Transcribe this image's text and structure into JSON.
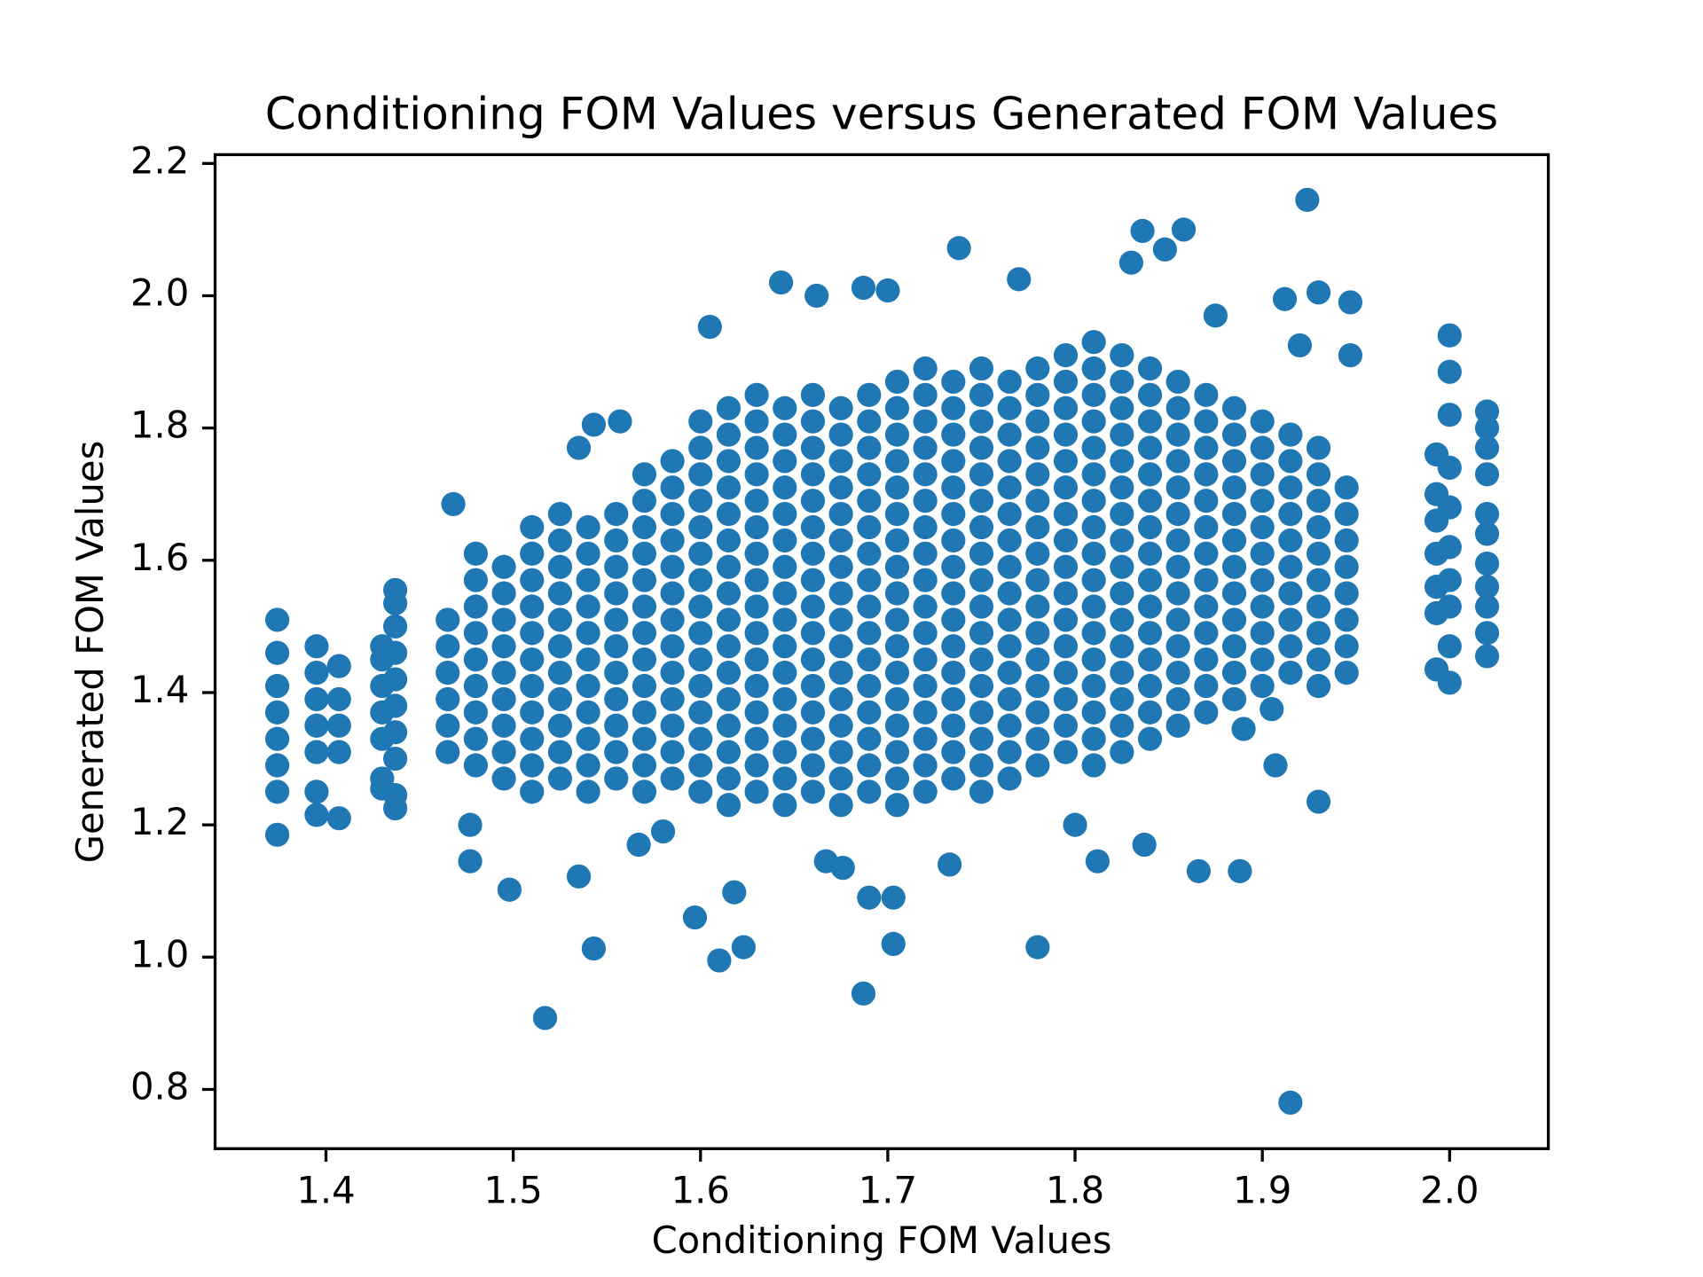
{
  "chart_data": {
    "type": "scatter",
    "title": "Conditioning FOM Values versus Generated FOM Values",
    "x_label": "Conditioning FOM Values",
    "y_label": "Generated FOM Values",
    "color": "#1f77b4",
    "xlim": [
      1.3408,
      2.0527
    ],
    "ylim": [
      0.7104,
      2.2133
    ],
    "xticks": [
      1.4,
      1.5,
      1.6,
      1.7,
      1.8,
      1.9,
      {
        "value": 2,
        "label": "2.0"
      }
    ],
    "yticks": [
      0.8,
      {
        "value": 1,
        "label": "1.0"
      },
      1.2,
      1.4,
      1.6,
      1.8,
      {
        "value": 2,
        "label": "2.0"
      },
      2.2
    ],
    "x": [
      1.374,
      1.374,
      1.374,
      1.374,
      1.374,
      1.374,
      1.374,
      1.374,
      1.395,
      1.395,
      1.395,
      1.395,
      1.395,
      1.395,
      1.395,
      1.407,
      1.407,
      1.407,
      1.407,
      1.407,
      1.43,
      1.43,
      1.43,
      1.43,
      1.43,
      1.43,
      1.43,
      1.437,
      1.437,
      1.437,
      1.437,
      1.437,
      1.437,
      1.437,
      1.437,
      1.437,
      1.437,
      1.993,
      1.993,
      1.993,
      1.993,
      1.993,
      1.993,
      1.993,
      2,
      2,
      2,
      2,
      2,
      2,
      2,
      2,
      2,
      2,
      2.02,
      2.02,
      2.02,
      2.02,
      2.02,
      2.02,
      2.02,
      2.02,
      2.02,
      2.02,
      2.02,
      1.915,
      1.517,
      1.687,
      1.61,
      1.623,
      1.543,
      1.78,
      1.703,
      1.597,
      1.618,
      1.498,
      1.535,
      1.69,
      1.703,
      1.888,
      1.866,
      1.924,
      1.858,
      1.836,
      1.738,
      1.643,
      1.605,
      1.477,
      1.477,
      1.468,
      1.812,
      1.837,
      1.907,
      1.93,
      1.905,
      1.676,
      1.667,
      1.733,
      1.567,
      1.58,
      1.543,
      1.535,
      1.557,
      1.662,
      1.687,
      1.7,
      1.77,
      1.848,
      1.83,
      1.875,
      1.912,
      1.93,
      1.947,
      1.947,
      1.92,
      1.8,
      1.89,
      1.465,
      1.465,
      1.465,
      1.465,
      1.465,
      1.465,
      1.48,
      1.48,
      1.48,
      1.48,
      1.48,
      1.48,
      1.48,
      1.48,
      1.48,
      1.495,
      1.495,
      1.495,
      1.495,
      1.495,
      1.495,
      1.495,
      1.495,
      1.495,
      1.51,
      1.51,
      1.51,
      1.51,
      1.51,
      1.51,
      1.51,
      1.51,
      1.51,
      1.51,
      1.51,
      1.525,
      1.525,
      1.525,
      1.525,
      1.525,
      1.525,
      1.525,
      1.525,
      1.525,
      1.525,
      1.525,
      1.54,
      1.54,
      1.54,
      1.54,
      1.54,
      1.54,
      1.54,
      1.54,
      1.54,
      1.54,
      1.54,
      1.555,
      1.555,
      1.555,
      1.555,
      1.555,
      1.555,
      1.555,
      1.555,
      1.555,
      1.555,
      1.555,
      1.57,
      1.57,
      1.57,
      1.57,
      1.57,
      1.57,
      1.57,
      1.57,
      1.57,
      1.57,
      1.57,
      1.57,
      1.57,
      1.585,
      1.585,
      1.585,
      1.585,
      1.585,
      1.585,
      1.585,
      1.585,
      1.585,
      1.585,
      1.585,
      1.585,
      1.585,
      1.6,
      1.6,
      1.6,
      1.6,
      1.6,
      1.6,
      1.6,
      1.6,
      1.6,
      1.6,
      1.6,
      1.6,
      1.6,
      1.6,
      1.6,
      1.615,
      1.615,
      1.615,
      1.615,
      1.615,
      1.615,
      1.615,
      1.615,
      1.615,
      1.615,
      1.615,
      1.615,
      1.615,
      1.615,
      1.615,
      1.615,
      1.63,
      1.63,
      1.63,
      1.63,
      1.63,
      1.63,
      1.63,
      1.63,
      1.63,
      1.63,
      1.63,
      1.63,
      1.63,
      1.63,
      1.63,
      1.63,
      1.645,
      1.645,
      1.645,
      1.645,
      1.645,
      1.645,
      1.645,
      1.645,
      1.645,
      1.645,
      1.645,
      1.645,
      1.645,
      1.645,
      1.645,
      1.645,
      1.66,
      1.66,
      1.66,
      1.66,
      1.66,
      1.66,
      1.66,
      1.66,
      1.66,
      1.66,
      1.66,
      1.66,
      1.66,
      1.66,
      1.66,
      1.66,
      1.675,
      1.675,
      1.675,
      1.675,
      1.675,
      1.675,
      1.675,
      1.675,
      1.675,
      1.675,
      1.675,
      1.675,
      1.675,
      1.675,
      1.675,
      1.675,
      1.69,
      1.69,
      1.69,
      1.69,
      1.69,
      1.69,
      1.69,
      1.69,
      1.69,
      1.69,
      1.69,
      1.69,
      1.69,
      1.69,
      1.69,
      1.69,
      1.705,
      1.705,
      1.705,
      1.705,
      1.705,
      1.705,
      1.705,
      1.705,
      1.705,
      1.705,
      1.705,
      1.705,
      1.705,
      1.705,
      1.705,
      1.705,
      1.705,
      1.72,
      1.72,
      1.72,
      1.72,
      1.72,
      1.72,
      1.72,
      1.72,
      1.72,
      1.72,
      1.72,
      1.72,
      1.72,
      1.72,
      1.72,
      1.72,
      1.72,
      1.735,
      1.735,
      1.735,
      1.735,
      1.735,
      1.735,
      1.735,
      1.735,
      1.735,
      1.735,
      1.735,
      1.735,
      1.735,
      1.735,
      1.735,
      1.735,
      1.75,
      1.75,
      1.75,
      1.75,
      1.75,
      1.75,
      1.75,
      1.75,
      1.75,
      1.75,
      1.75,
      1.75,
      1.75,
      1.75,
      1.75,
      1.75,
      1.75,
      1.765,
      1.765,
      1.765,
      1.765,
      1.765,
      1.765,
      1.765,
      1.765,
      1.765,
      1.765,
      1.765,
      1.765,
      1.765,
      1.765,
      1.765,
      1.765,
      1.78,
      1.78,
      1.78,
      1.78,
      1.78,
      1.78,
      1.78,
      1.78,
      1.78,
      1.78,
      1.78,
      1.78,
      1.78,
      1.78,
      1.78,
      1.78,
      1.795,
      1.795,
      1.795,
      1.795,
      1.795,
      1.795,
      1.795,
      1.795,
      1.795,
      1.795,
      1.795,
      1.795,
      1.795,
      1.795,
      1.795,
      1.795,
      1.81,
      1.81,
      1.81,
      1.81,
      1.81,
      1.81,
      1.81,
      1.81,
      1.81,
      1.81,
      1.81,
      1.81,
      1.81,
      1.81,
      1.81,
      1.81,
      1.81,
      1.825,
      1.825,
      1.825,
      1.825,
      1.825,
      1.825,
      1.825,
      1.825,
      1.825,
      1.825,
      1.825,
      1.825,
      1.825,
      1.825,
      1.825,
      1.825,
      1.84,
      1.84,
      1.84,
      1.84,
      1.84,
      1.84,
      1.84,
      1.84,
      1.84,
      1.84,
      1.84,
      1.84,
      1.84,
      1.84,
      1.84,
      1.855,
      1.855,
      1.855,
      1.855,
      1.855,
      1.855,
      1.855,
      1.855,
      1.855,
      1.855,
      1.855,
      1.855,
      1.855,
      1.855,
      1.87,
      1.87,
      1.87,
      1.87,
      1.87,
      1.87,
      1.87,
      1.87,
      1.87,
      1.87,
      1.87,
      1.87,
      1.87,
      1.885,
      1.885,
      1.885,
      1.885,
      1.885,
      1.885,
      1.885,
      1.885,
      1.885,
      1.885,
      1.885,
      1.885,
      1.9,
      1.9,
      1.9,
      1.9,
      1.9,
      1.9,
      1.9,
      1.9,
      1.9,
      1.9,
      1.9,
      1.915,
      1.915,
      1.915,
      1.915,
      1.915,
      1.915,
      1.915,
      1.915,
      1.915,
      1.915,
      1.93,
      1.93,
      1.93,
      1.93,
      1.93,
      1.93,
      1.93,
      1.93,
      1.93,
      1.93,
      1.945,
      1.945,
      1.945,
      1.945,
      1.945,
      1.945,
      1.945,
      1.945
    ],
    "values": [
      1.185,
      1.25,
      1.29,
      1.33,
      1.37,
      1.41,
      1.46,
      1.51,
      1.215,
      1.25,
      1.31,
      1.35,
      1.39,
      1.43,
      1.47,
      1.21,
      1.31,
      1.35,
      1.39,
      1.44,
      1.255,
      1.27,
      1.33,
      1.37,
      1.41,
      1.45,
      1.47,
      1.225,
      1.245,
      1.3,
      1.34,
      1.38,
      1.42,
      1.46,
      1.5,
      1.535,
      1.555,
      1.435,
      1.52,
      1.56,
      1.61,
      1.66,
      1.7,
      1.76,
      1.415,
      1.47,
      1.53,
      1.57,
      1.62,
      1.68,
      1.74,
      1.82,
      1.885,
      1.94,
      1.455,
      1.49,
      1.53,
      1.56,
      1.595,
      1.64,
      1.67,
      1.73,
      1.77,
      1.8,
      1.825,
      0.78,
      0.908,
      0.945,
      0.995,
      1.015,
      1.013,
      1.015,
      1.02,
      1.06,
      1.098,
      1.102,
      1.122,
      1.09,
      1.09,
      1.13,
      1.13,
      2.145,
      2.1,
      2.098,
      2.072,
      2.02,
      1.953,
      1.145,
      1.2,
      1.685,
      1.145,
      1.17,
      1.29,
      1.235,
      1.375,
      1.135,
      1.145,
      1.14,
      1.17,
      1.19,
      1.805,
      1.77,
      1.81,
      2,
      2.012,
      2.008,
      2.025,
      2.07,
      2.05,
      1.97,
      1.995,
      2.005,
      1.99,
      1.91,
      1.925,
      1.2,
      1.345,
      1.31,
      1.35,
      1.39,
      1.43,
      1.47,
      1.51,
      1.29,
      1.33,
      1.37,
      1.41,
      1.45,
      1.49,
      1.53,
      1.57,
      1.61,
      1.27,
      1.31,
      1.35,
      1.39,
      1.43,
      1.47,
      1.51,
      1.55,
      1.59,
      1.25,
      1.29,
      1.33,
      1.37,
      1.41,
      1.45,
      1.49,
      1.53,
      1.57,
      1.61,
      1.65,
      1.27,
      1.31,
      1.35,
      1.39,
      1.43,
      1.47,
      1.51,
      1.55,
      1.59,
      1.63,
      1.67,
      1.25,
      1.29,
      1.33,
      1.37,
      1.41,
      1.45,
      1.49,
      1.53,
      1.57,
      1.61,
      1.65,
      1.27,
      1.31,
      1.35,
      1.39,
      1.43,
      1.47,
      1.51,
      1.55,
      1.59,
      1.63,
      1.67,
      1.25,
      1.29,
      1.33,
      1.37,
      1.41,
      1.45,
      1.49,
      1.53,
      1.57,
      1.61,
      1.65,
      1.69,
      1.73,
      1.27,
      1.31,
      1.35,
      1.39,
      1.43,
      1.47,
      1.51,
      1.55,
      1.59,
      1.63,
      1.67,
      1.71,
      1.75,
      1.25,
      1.29,
      1.33,
      1.37,
      1.41,
      1.45,
      1.49,
      1.53,
      1.57,
      1.61,
      1.65,
      1.69,
      1.73,
      1.77,
      1.81,
      1.23,
      1.27,
      1.31,
      1.35,
      1.39,
      1.43,
      1.47,
      1.51,
      1.55,
      1.59,
      1.63,
      1.67,
      1.71,
      1.75,
      1.79,
      1.83,
      1.25,
      1.29,
      1.33,
      1.37,
      1.41,
      1.45,
      1.49,
      1.53,
      1.57,
      1.61,
      1.65,
      1.69,
      1.73,
      1.77,
      1.81,
      1.85,
      1.23,
      1.27,
      1.31,
      1.35,
      1.39,
      1.43,
      1.47,
      1.51,
      1.55,
      1.59,
      1.63,
      1.67,
      1.71,
      1.75,
      1.79,
      1.83,
      1.25,
      1.29,
      1.33,
      1.37,
      1.41,
      1.45,
      1.49,
      1.53,
      1.57,
      1.61,
      1.65,
      1.69,
      1.73,
      1.77,
      1.81,
      1.85,
      1.23,
      1.27,
      1.31,
      1.35,
      1.39,
      1.43,
      1.47,
      1.51,
      1.55,
      1.59,
      1.63,
      1.67,
      1.71,
      1.75,
      1.79,
      1.83,
      1.25,
      1.29,
      1.33,
      1.37,
      1.41,
      1.45,
      1.49,
      1.53,
      1.57,
      1.61,
      1.65,
      1.69,
      1.73,
      1.77,
      1.81,
      1.85,
      1.23,
      1.27,
      1.31,
      1.35,
      1.39,
      1.43,
      1.47,
      1.51,
      1.55,
      1.59,
      1.63,
      1.67,
      1.71,
      1.75,
      1.79,
      1.83,
      1.87,
      1.25,
      1.29,
      1.33,
      1.37,
      1.41,
      1.45,
      1.49,
      1.53,
      1.57,
      1.61,
      1.65,
      1.69,
      1.73,
      1.77,
      1.81,
      1.85,
      1.89,
      1.27,
      1.31,
      1.35,
      1.39,
      1.43,
      1.47,
      1.51,
      1.55,
      1.59,
      1.63,
      1.67,
      1.71,
      1.75,
      1.79,
      1.83,
      1.87,
      1.25,
      1.29,
      1.33,
      1.37,
      1.41,
      1.45,
      1.49,
      1.53,
      1.57,
      1.61,
      1.65,
      1.69,
      1.73,
      1.77,
      1.81,
      1.85,
      1.89,
      1.27,
      1.31,
      1.35,
      1.39,
      1.43,
      1.47,
      1.51,
      1.55,
      1.59,
      1.63,
      1.67,
      1.71,
      1.75,
      1.79,
      1.83,
      1.87,
      1.29,
      1.33,
      1.37,
      1.41,
      1.45,
      1.49,
      1.53,
      1.57,
      1.61,
      1.65,
      1.69,
      1.73,
      1.77,
      1.81,
      1.85,
      1.89,
      1.31,
      1.35,
      1.39,
      1.43,
      1.47,
      1.51,
      1.55,
      1.59,
      1.63,
      1.67,
      1.71,
      1.75,
      1.79,
      1.83,
      1.87,
      1.91,
      1.29,
      1.33,
      1.37,
      1.41,
      1.45,
      1.49,
      1.53,
      1.57,
      1.61,
      1.65,
      1.69,
      1.73,
      1.77,
      1.81,
      1.85,
      1.89,
      1.93,
      1.31,
      1.35,
      1.39,
      1.43,
      1.47,
      1.51,
      1.55,
      1.59,
      1.63,
      1.67,
      1.71,
      1.75,
      1.79,
      1.83,
      1.87,
      1.91,
      1.33,
      1.37,
      1.41,
      1.45,
      1.49,
      1.53,
      1.57,
      1.61,
      1.65,
      1.69,
      1.73,
      1.77,
      1.81,
      1.85,
      1.89,
      1.35,
      1.39,
      1.43,
      1.47,
      1.51,
      1.55,
      1.59,
      1.63,
      1.67,
      1.71,
      1.75,
      1.79,
      1.83,
      1.87,
      1.37,
      1.41,
      1.45,
      1.49,
      1.53,
      1.57,
      1.61,
      1.65,
      1.69,
      1.73,
      1.77,
      1.81,
      1.85,
      1.39,
      1.43,
      1.47,
      1.51,
      1.55,
      1.59,
      1.63,
      1.67,
      1.71,
      1.75,
      1.79,
      1.83,
      1.41,
      1.45,
      1.49,
      1.53,
      1.57,
      1.61,
      1.65,
      1.69,
      1.73,
      1.77,
      1.81,
      1.43,
      1.47,
      1.51,
      1.55,
      1.59,
      1.63,
      1.67,
      1.71,
      1.75,
      1.79,
      1.41,
      1.45,
      1.49,
      1.53,
      1.57,
      1.61,
      1.65,
      1.69,
      1.73,
      1.77,
      1.43,
      1.47,
      1.51,
      1.55,
      1.59,
      1.63,
      1.67,
      1.71
    ]
  }
}
